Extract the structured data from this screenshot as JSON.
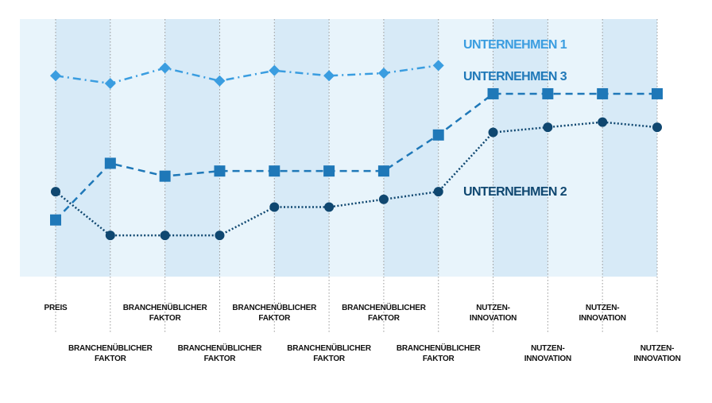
{
  "chart_data": {
    "type": "line",
    "categories": [
      "PREIS",
      "BRANCHENÜBLICHER\nFAKTOR",
      "BRANCHENÜBLICHER\nFAKTOR",
      "BRANCHENÜBLICHER\nFAKTOR",
      "BRANCHENÜBLICHER\nFAKTOR",
      "BRANCHENÜBLICHER\nFAKTOR",
      "BRANCHENÜBLICHER\nFAKTOR",
      "BRANCHENÜBLICHER\nFAKTOR",
      "NUTZEN-\nINNOVATION",
      "NUTZEN-\nINNOVATION",
      "NUTZEN-\nINNOVATION",
      "NUTZEN-\nINNOVATION"
    ],
    "series": [
      {
        "name": "UNTERNEHMEN 1",
        "color": "#3a9de0",
        "marker": "diamond",
        "dash": "dashdot",
        "values": [
          7.8,
          7.5,
          8.1,
          7.6,
          8.0,
          7.8,
          7.9,
          8.2,
          null,
          null,
          null,
          null
        ]
      },
      {
        "name": "UNTERNEHMEN 3",
        "color": "#1f78b8",
        "marker": "square",
        "dash": "dashed",
        "values": [
          2.2,
          4.4,
          3.9,
          4.1,
          4.1,
          4.1,
          4.1,
          5.5,
          7.1,
          7.1,
          7.1,
          7.1
        ]
      },
      {
        "name": "UNTERNEHMEN 2",
        "color": "#0f4770",
        "marker": "circle",
        "dash": "dotted",
        "values": [
          3.3,
          1.6,
          1.6,
          1.6,
          2.7,
          2.7,
          3.0,
          3.3,
          5.6,
          5.8,
          6.0,
          5.8
        ]
      }
    ],
    "ylim": [
      0,
      10
    ]
  }
}
